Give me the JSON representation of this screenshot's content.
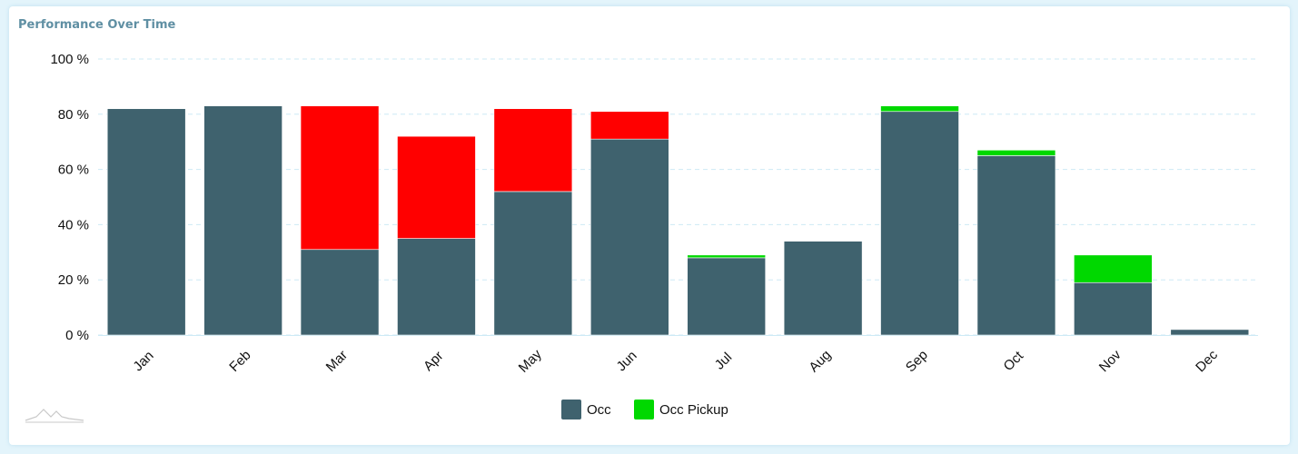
{
  "card": {
    "title": "Performance Over Time"
  },
  "colors": {
    "occ": "#3f626e",
    "occ_pickup": "#00d800",
    "drop": "#ff0000",
    "grid": "#cdeaf5"
  },
  "icons": {
    "logo": "mountain-logo-icon"
  },
  "chart_data": {
    "type": "bar",
    "stacked": true,
    "title": "Performance Over Time",
    "xlabel": "",
    "ylabel": "",
    "ylim": [
      0,
      100
    ],
    "yticks": [
      "0 %",
      "20 %",
      "40 %",
      "60 %",
      "80 %",
      "100 %"
    ],
    "grid": true,
    "legend_position": "bottom-center",
    "categories": [
      "Jan",
      "Feb",
      "Mar",
      "Apr",
      "May",
      "Jun",
      "Jul",
      "Aug",
      "Sep",
      "Oct",
      "Nov",
      "Dec"
    ],
    "series": [
      {
        "name": "Occ",
        "color": "#3f626e",
        "values": [
          82,
          83,
          31,
          35,
          52,
          71,
          28,
          34,
          81,
          65,
          19,
          2
        ]
      },
      {
        "name": "Occ Pickup",
        "color": "#00d800",
        "values": [
          0,
          0,
          0,
          0,
          0,
          0,
          1,
          0,
          2,
          2,
          10,
          0
        ]
      },
      {
        "color": "#ff0000",
        "values": [
          0,
          0,
          52,
          37,
          30,
          10,
          0,
          0,
          0,
          0,
          0,
          0
        ]
      }
    ],
    "legend": [
      {
        "label": "Occ",
        "color": "#3f626e"
      },
      {
        "label": "Occ Pickup",
        "color": "#00d800"
      }
    ]
  }
}
